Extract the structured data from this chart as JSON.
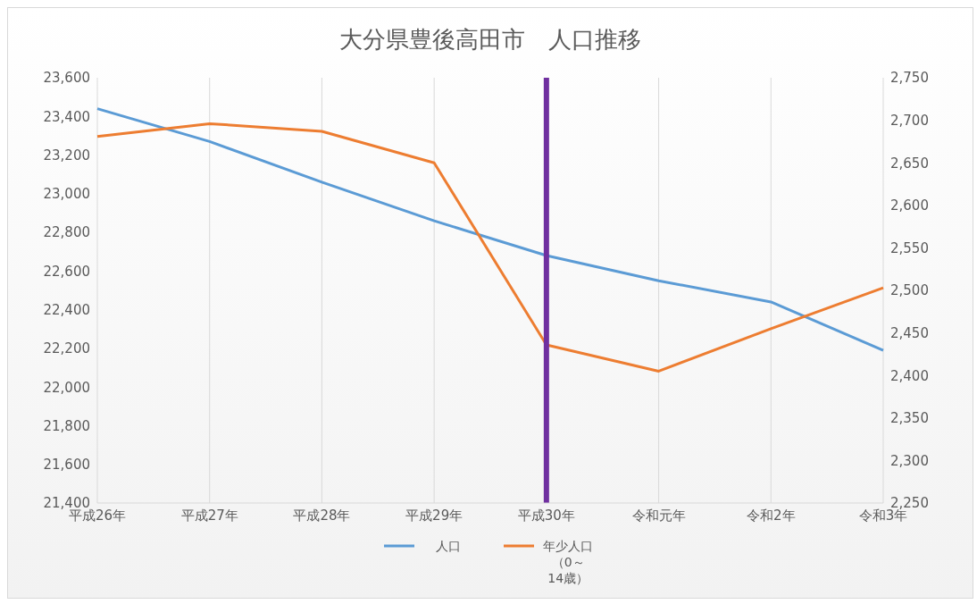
{
  "chart_data": {
    "type": "line",
    "title": "大分県豊後高田市　人口推移",
    "categories": [
      "平成26年",
      "平成27年",
      "平成28年",
      "平成29年",
      "平成30年",
      "令和元年",
      "令和2年",
      "令和3年"
    ],
    "series": [
      {
        "name": "人口",
        "color": "#5b9bd5",
        "values": [
          23440,
          23270,
          23060,
          22860,
          22680,
          22550,
          22440,
          22190
        ]
      },
      {
        "name": "年少人口（0～14歳）",
        "color": "#ed7d31",
        "axis": "y2",
        "values": [
          2681,
          2696,
          2687,
          2650,
          2436,
          2405,
          2455,
          2503
        ]
      }
    ],
    "ylim": [
      21400,
      23600
    ],
    "yticks": [
      {
        "value": 21400,
        "label": "21,400"
      },
      {
        "value": 21600,
        "label": "21,600"
      },
      {
        "value": 21800,
        "label": "21,800"
      },
      {
        "value": 22000,
        "label": "22,000"
      },
      {
        "value": 22200,
        "label": "22,200"
      },
      {
        "value": 22400,
        "label": "22,400"
      },
      {
        "value": 22600,
        "label": "22,600"
      },
      {
        "value": 22800,
        "label": "22,800"
      },
      {
        "value": 23000,
        "label": "23,000"
      },
      {
        "value": 23200,
        "label": "23,200"
      },
      {
        "value": 23400,
        "label": "23,400"
      },
      {
        "value": 23600,
        "label": "23,600"
      }
    ],
    "y2lim": [
      2250,
      2750
    ],
    "y2ticks": [
      {
        "value": 2250,
        "label": "2,250"
      },
      {
        "value": 2300,
        "label": "2,300"
      },
      {
        "value": 2350,
        "label": "2,350"
      },
      {
        "value": 2400,
        "label": "2,400"
      },
      {
        "value": 2450,
        "label": "2,450"
      },
      {
        "value": 2500,
        "label": "2,500"
      },
      {
        "value": 2550,
        "label": "2,550"
      },
      {
        "value": 2600,
        "label": "2,600"
      },
      {
        "value": 2650,
        "label": "2,650"
      },
      {
        "value": 2700,
        "label": "2,700"
      },
      {
        "value": 2750,
        "label": "2,750"
      }
    ],
    "ref_lines": [
      {
        "axis": "x",
        "value": "平成30年",
        "color": "#7030a0"
      }
    ],
    "grid": "x",
    "legend": "bottom",
    "marker": "none",
    "line_style": "solid"
  }
}
